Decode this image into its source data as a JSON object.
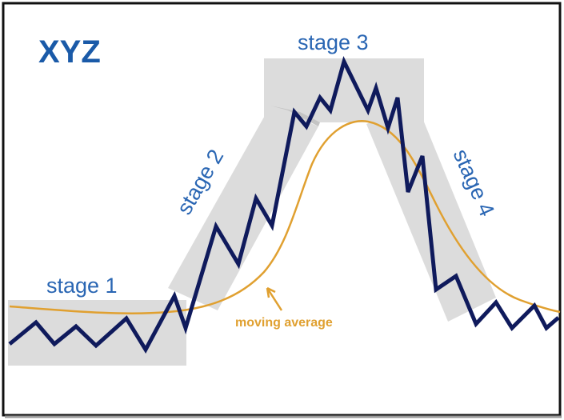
{
  "title": "XYZ",
  "stages": [
    "stage 1",
    "stage 2",
    "stage 3",
    "stage 4"
  ],
  "annotation": "moving average"
}
